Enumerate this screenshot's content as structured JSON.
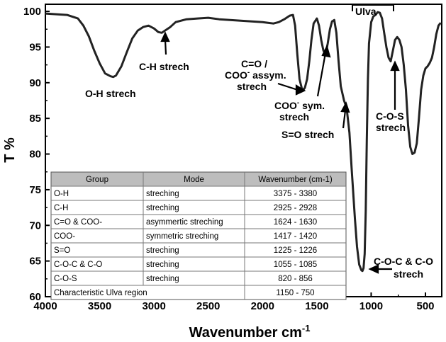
{
  "chart_data": {
    "type": "line",
    "xlabel": "Wavenumber cm",
    "xlabel_sup": "-1",
    "ylabel": "T %",
    "xlim": [
      4000,
      350
    ],
    "ylim": [
      60,
      101
    ],
    "x_ticks": [
      4000,
      3500,
      3000,
      2500,
      2000,
      1500,
      1000,
      500
    ],
    "x_tick_labels": [
      "4000",
      "3500",
      "3000",
      "2500",
      "2000",
      "1500",
      "1000",
      "500"
    ],
    "y_ticks": [
      60,
      65,
      70,
      75,
      80,
      85,
      90,
      95,
      100
    ],
    "y_tick_labels": [
      "60",
      "65",
      "70",
      "75",
      "80",
      "85",
      "90",
      "95",
      "100"
    ],
    "grid": false,
    "series": [
      {
        "x": [
          4000,
          3900,
          3800,
          3700,
          3650,
          3600,
          3550,
          3500,
          3450,
          3400,
          3375,
          3350,
          3300,
          3250,
          3200,
          3150,
          3100,
          3050,
          3000,
          2960,
          2928,
          2900,
          2850,
          2800,
          2700,
          2600,
          2500,
          2400,
          2300,
          2200,
          2100,
          2000,
          1950,
          1900,
          1850,
          1800,
          1750,
          1720,
          1700,
          1680,
          1660,
          1640,
          1630,
          1624,
          1610,
          1590,
          1570,
          1550,
          1530,
          1500,
          1480,
          1460,
          1440,
          1420,
          1400,
          1380,
          1360,
          1340,
          1320,
          1300,
          1280,
          1250,
          1226,
          1200,
          1180,
          1150,
          1130,
          1110,
          1090,
          1080,
          1070,
          1060,
          1050,
          1040,
          1030,
          1020,
          1000,
          980,
          960,
          940,
          920,
          900,
          880,
          860,
          840,
          820,
          800,
          780,
          760,
          740,
          720,
          700,
          680,
          660,
          640,
          620,
          600,
          580,
          560,
          540,
          520,
          500,
          480,
          460,
          440,
          420,
          400,
          380,
          360
        ],
        "y": [
          99.7,
          99.6,
          99.5,
          99.0,
          98.0,
          96.5,
          94.5,
          92.7,
          91.3,
          90.9,
          90.8,
          91.0,
          92.3,
          94.3,
          96.2,
          97.3,
          97.8,
          98.0,
          97.6,
          97.1,
          97.0,
          97.3,
          97.8,
          98.5,
          98.9,
          99.0,
          99.1,
          98.9,
          98.8,
          98.7,
          98.6,
          98.5,
          98.4,
          98.3,
          98.5,
          98.9,
          99.4,
          99.5,
          98.0,
          94.0,
          90.5,
          89.3,
          89.0,
          89.0,
          89.3,
          90.5,
          93.0,
          96.0,
          98.3,
          99.0,
          98.0,
          96.0,
          94.5,
          94.0,
          95.5,
          97.5,
          98.6,
          98.8,
          97.0,
          93.0,
          89.5,
          87.5,
          86.5,
          83.0,
          78.0,
          71.0,
          67.0,
          64.5,
          63.7,
          63.6,
          64.0,
          66.0,
          72.0,
          82.0,
          90.5,
          95.5,
          98.5,
          99.3,
          99.5,
          99.9,
          99.8,
          99.0,
          97.0,
          95.0,
          93.5,
          93.0,
          94.5,
          96.0,
          96.4,
          96.0,
          95.0,
          92.5,
          89.0,
          84.0,
          81.0,
          80.0,
          80.2,
          81.5,
          85.0,
          89.0,
          91.0,
          92.0,
          92.3,
          92.8,
          93.5,
          95.0,
          96.8,
          98.0,
          98.4
        ]
      }
    ],
    "annotations": [
      {
        "text": "O-H strech"
      },
      {
        "text": "C-H strech"
      },
      {
        "text": "C=O /"
      },
      {
        "text": "COO",
        "sup": "-",
        "rest": " assym."
      },
      {
        "text": "strech"
      },
      {
        "text": "COO",
        "sup": "-",
        "rest": " sym."
      },
      {
        "text": "strech"
      },
      {
        "text": "S=O strech"
      },
      {
        "text": "Ulva"
      },
      {
        "text": "C-O-S"
      },
      {
        "text": "strech"
      },
      {
        "text": "C-O-C & C-O"
      },
      {
        "text": "strech"
      }
    ],
    "table": {
      "headers": [
        "Group",
        "Mode",
        "Wavenumber (cm-1)"
      ],
      "rows": [
        [
          "O-H",
          "streching",
          "3375 - 3380"
        ],
        [
          "C-H",
          "streching",
          "2925 - 2928"
        ],
        [
          "C=O & COO-",
          "asymmertic streching",
          "1624 - 1630"
        ],
        [
          "COO-",
          "symmetric streching",
          "1417 - 1420"
        ],
        [
          "S=O",
          "streching",
          "1225 - 1226"
        ],
        [
          "C-O-C & C-O",
          "streching",
          "1055 - 1085"
        ],
        [
          "C-O-S",
          "streching",
          "820 - 856"
        ],
        [
          "Characteristic Ulva region",
          "",
          "1150 - 750"
        ]
      ]
    }
  }
}
